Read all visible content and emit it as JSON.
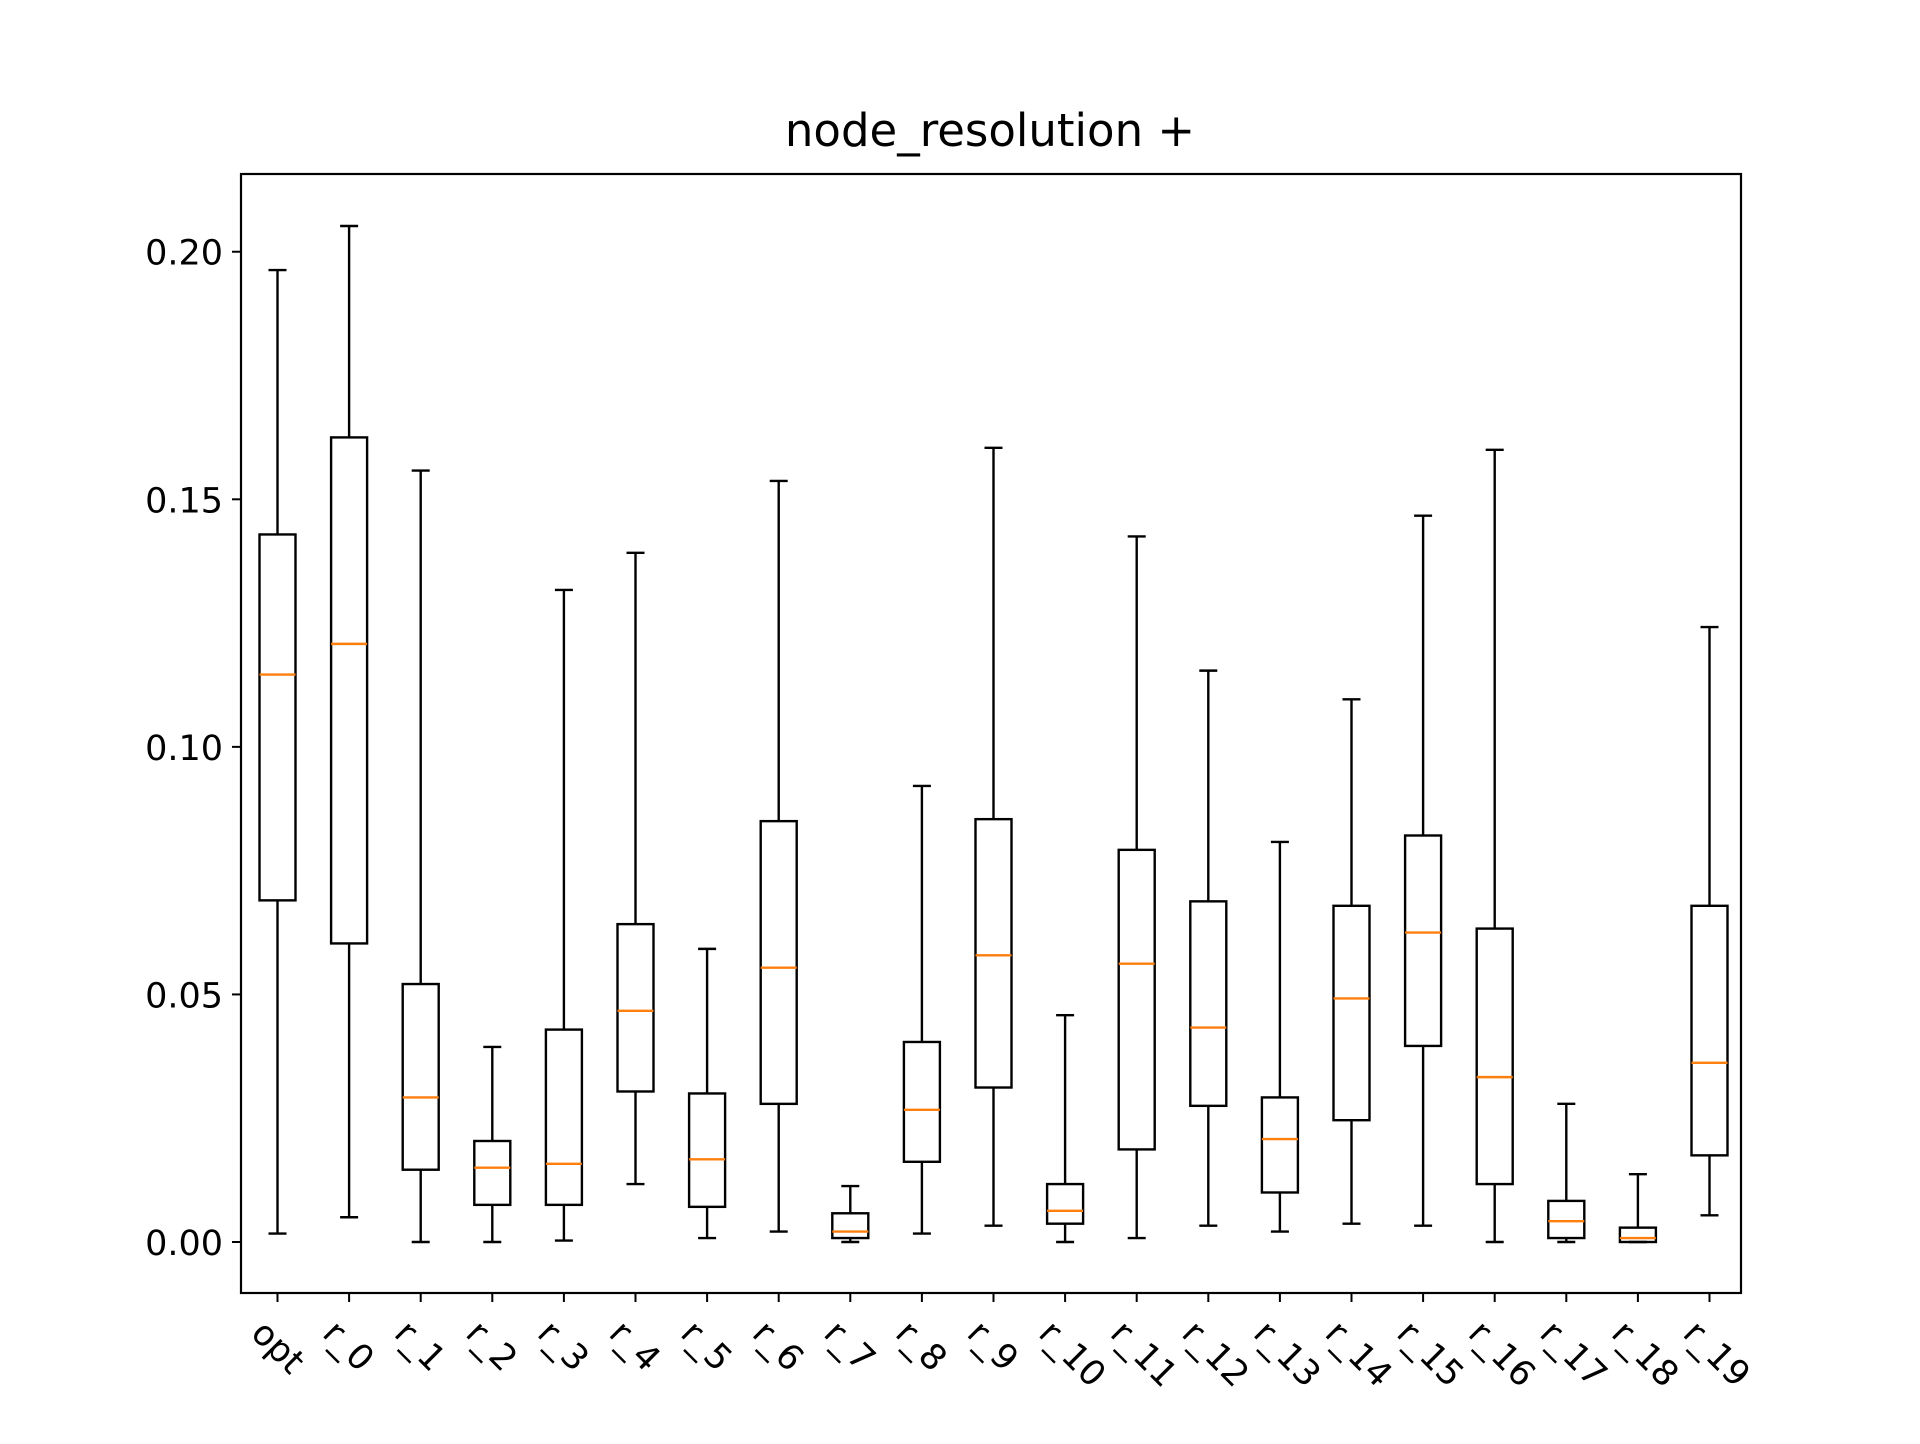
{
  "chart_data": {
    "type": "box",
    "title": "node_resolution +",
    "xlabel": "",
    "ylabel": "",
    "ylim": [
      -0.0103,
      0.2157
    ],
    "yticks": [
      0.0,
      0.05,
      0.1,
      0.15,
      0.2
    ],
    "ytick_labels": [
      "0.00",
      "0.05",
      "0.10",
      "0.15",
      "0.20"
    ],
    "categories": [
      "opt",
      "r_0",
      "r_1",
      "r_2",
      "r_3",
      "r_4",
      "r_5",
      "r_6",
      "r_7",
      "r_8",
      "r_9",
      "r_10",
      "r_11",
      "r_12",
      "r_13",
      "r_14",
      "r_15",
      "r_16",
      "r_17",
      "r_18",
      "r_19"
    ],
    "boxes": [
      {
        "whislo": 0.0017,
        "q1": 0.069,
        "med": 0.1146,
        "q3": 0.1429,
        "whishi": 0.1963
      },
      {
        "whislo": 0.005,
        "q1": 0.0603,
        "med": 0.1208,
        "q3": 0.1625,
        "whishi": 0.2052
      },
      {
        "whislo": 0.0,
        "q1": 0.0146,
        "med": 0.0292,
        "q3": 0.0521,
        "whishi": 0.1558
      },
      {
        "whislo": 0.0,
        "q1": 0.0075,
        "med": 0.015,
        "q3": 0.0204,
        "whishi": 0.0394
      },
      {
        "whislo": 0.0003,
        "q1": 0.0075,
        "med": 0.0158,
        "q3": 0.0429,
        "whishi": 0.1317
      },
      {
        "whislo": 0.0117,
        "q1": 0.0304,
        "med": 0.0467,
        "q3": 0.0642,
        "whishi": 0.1392
      },
      {
        "whislo": 0.0008,
        "q1": 0.0071,
        "med": 0.0167,
        "q3": 0.03,
        "whishi": 0.0592
      },
      {
        "whislo": 0.0021,
        "q1": 0.0279,
        "med": 0.0554,
        "q3": 0.085,
        "whishi": 0.1537
      },
      {
        "whislo": 0.0,
        "q1": 0.0008,
        "med": 0.0021,
        "q3": 0.0058,
        "whishi": 0.0113
      },
      {
        "whislo": 0.0017,
        "q1": 0.0162,
        "med": 0.0267,
        "q3": 0.0404,
        "whishi": 0.0921
      },
      {
        "whislo": 0.0033,
        "q1": 0.0312,
        "med": 0.0579,
        "q3": 0.0854,
        "whishi": 0.1604
      },
      {
        "whislo": 0.0,
        "q1": 0.0037,
        "med": 0.0063,
        "q3": 0.0117,
        "whishi": 0.0458
      },
      {
        "whislo": 0.0008,
        "q1": 0.0187,
        "med": 0.0562,
        "q3": 0.0792,
        "whishi": 0.1425
      },
      {
        "whislo": 0.0033,
        "q1": 0.0275,
        "med": 0.0433,
        "q3": 0.0688,
        "whishi": 0.1154
      },
      {
        "whislo": 0.0021,
        "q1": 0.01,
        "med": 0.0208,
        "q3": 0.0292,
        "whishi": 0.0808
      },
      {
        "whislo": 0.0037,
        "q1": 0.0246,
        "med": 0.0492,
        "q3": 0.0679,
        "whishi": 0.1096
      },
      {
        "whislo": 0.0033,
        "q1": 0.0396,
        "med": 0.0625,
        "q3": 0.0821,
        "whishi": 0.1467
      },
      {
        "whislo": 0.0,
        "q1": 0.0117,
        "med": 0.0333,
        "q3": 0.0633,
        "whishi": 0.16
      },
      {
        "whislo": 0.0,
        "q1": 0.0008,
        "med": 0.0042,
        "q3": 0.0083,
        "whishi": 0.0279
      },
      {
        "whislo": 0.0,
        "q1": 0.0,
        "med": 0.0008,
        "q3": 0.0029,
        "whishi": 0.0137
      },
      {
        "whislo": 0.0054,
        "q1": 0.0175,
        "med": 0.0362,
        "q3": 0.0679,
        "whishi": 0.1242
      }
    ],
    "box_color": "#000000",
    "median_color": "#ff7f0e",
    "grid": false,
    "legend": false
  }
}
